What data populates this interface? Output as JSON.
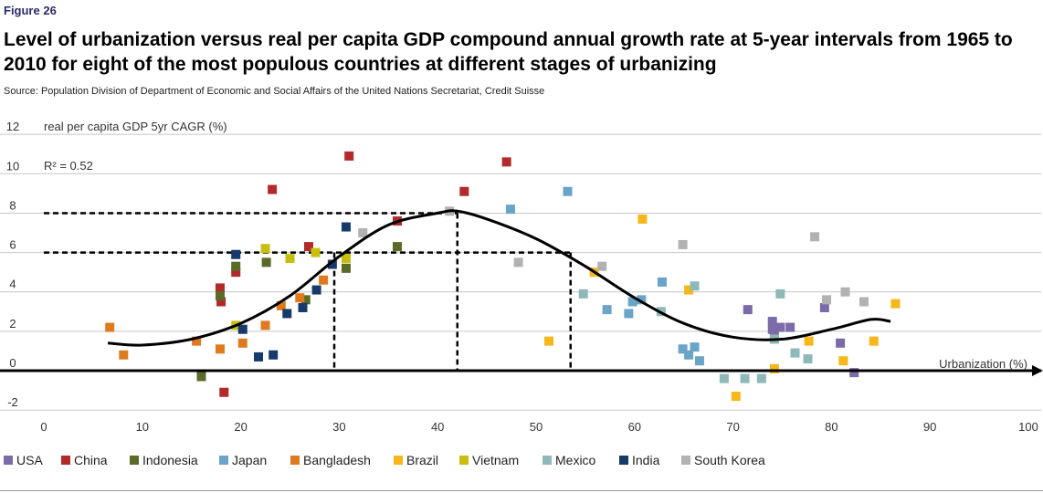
{
  "figure_label": "Figure 26",
  "title": "Level of urbanization versus real per capita GDP compound annual growth rate at 5-year intervals from 1965 to 2010 for eight of the most populous countries at different stages of urbanizing",
  "source": "Source: Population Division of Department of Economic and Social Affairs of the United Nations Secretariat, Credit Suisse",
  "chart_data": {
    "type": "scatter",
    "ylabel": "real per capita GDP 5yr CAGR (%)",
    "xlabel": "Urbanization (%)",
    "annotation": "R² = 0.52",
    "xlim": [
      0,
      100
    ],
    "ylim": [
      -2,
      12
    ],
    "xticks": [
      "0",
      "10",
      "20",
      "30",
      "40",
      "50",
      "60",
      "70",
      "80",
      "90",
      "100"
    ],
    "yticks": [
      "-2",
      "0",
      "2",
      "4",
      "6",
      "8",
      "10",
      "12"
    ],
    "colors": {
      "USA": "#7b6ba8",
      "China": "#b22a2a",
      "Indonesia": "#5a6a28",
      "Japan": "#6aa4c8",
      "Bangladesh": "#e07a20",
      "Brazil": "#f7b71a",
      "Vietnam": "#c8be10",
      "Mexico": "#8fb8b8",
      "India": "#163a6a",
      "South Korea": "#b2b2b2"
    },
    "series": [
      {
        "name": "USA",
        "points": [
          [
            71.5,
            3.1
          ],
          [
            74.0,
            2.5
          ],
          [
            74.0,
            2.1
          ],
          [
            74.2,
            1.8
          ],
          [
            74.8,
            2.2
          ],
          [
            75.8,
            2.2
          ],
          [
            79.3,
            3.2
          ],
          [
            80.9,
            1.4
          ],
          [
            82.3,
            -0.1
          ]
        ]
      },
      {
        "name": "China",
        "points": [
          [
            17.9,
            4.2
          ],
          [
            18.0,
            3.5
          ],
          [
            19.5,
            5.0
          ],
          [
            23.2,
            9.2
          ],
          [
            26.9,
            6.3
          ],
          [
            31.0,
            10.9
          ],
          [
            35.9,
            7.6
          ],
          [
            42.7,
            9.1
          ],
          [
            47.0,
            10.6
          ],
          [
            18.3,
            -1.1
          ]
        ]
      },
      {
        "name": "Indonesia",
        "points": [
          [
            16.0,
            -0.3
          ],
          [
            17.9,
            3.8
          ],
          [
            19.5,
            5.3
          ],
          [
            22.6,
            5.5
          ],
          [
            26.6,
            3.6
          ],
          [
            30.7,
            5.2
          ],
          [
            35.9,
            6.3
          ]
        ]
      },
      {
        "name": "Japan",
        "points": [
          [
            47.4,
            8.2
          ],
          [
            53.2,
            9.1
          ],
          [
            57.2,
            3.1
          ],
          [
            59.4,
            2.9
          ],
          [
            59.8,
            3.5
          ],
          [
            60.7,
            3.6
          ],
          [
            62.8,
            4.5
          ],
          [
            64.9,
            1.1
          ],
          [
            65.5,
            0.8
          ],
          [
            66.1,
            1.2
          ],
          [
            66.6,
            0.5
          ]
        ]
      },
      {
        "name": "Bangladesh",
        "points": [
          [
            6.7,
            2.2
          ],
          [
            8.1,
            0.8
          ],
          [
            15.5,
            1.5
          ],
          [
            17.9,
            1.1
          ],
          [
            20.2,
            1.4
          ],
          [
            22.5,
            2.3
          ],
          [
            24.1,
            3.3
          ],
          [
            26.0,
            3.7
          ],
          [
            28.4,
            4.6
          ]
        ]
      },
      {
        "name": "Brazil",
        "points": [
          [
            51.3,
            1.5
          ],
          [
            55.9,
            5.0
          ],
          [
            60.8,
            7.7
          ],
          [
            65.5,
            4.1
          ],
          [
            70.3,
            -1.3
          ],
          [
            74.2,
            0.1
          ],
          [
            77.7,
            1.5
          ],
          [
            81.2,
            0.5
          ],
          [
            84.3,
            1.5
          ],
          [
            86.5,
            3.4
          ]
        ]
      },
      {
        "name": "Vietnam",
        "points": [
          [
            19.5,
            2.3
          ],
          [
            22.5,
            6.2
          ],
          [
            25.0,
            5.7
          ],
          [
            27.6,
            6.0
          ],
          [
            30.7,
            5.7
          ]
        ]
      },
      {
        "name": "Mexico",
        "points": [
          [
            54.8,
            3.9
          ],
          [
            62.7,
            3.0
          ],
          [
            66.1,
            4.3
          ],
          [
            69.1,
            -0.4
          ],
          [
            71.2,
            -0.4
          ],
          [
            72.9,
            -0.4
          ],
          [
            74.2,
            1.6
          ],
          [
            74.8,
            3.9
          ],
          [
            76.3,
            0.9
          ],
          [
            77.6,
            0.6
          ]
        ]
      },
      {
        "name": "India",
        "points": [
          [
            19.5,
            5.9
          ],
          [
            20.2,
            2.1
          ],
          [
            21.8,
            0.7
          ],
          [
            23.3,
            0.8
          ],
          [
            24.7,
            2.9
          ],
          [
            26.3,
            3.2
          ],
          [
            27.7,
            4.1
          ],
          [
            29.3,
            5.4
          ],
          [
            30.7,
            7.3
          ]
        ]
      },
      {
        "name": "South Korea",
        "points": [
          [
            32.4,
            7.0
          ],
          [
            41.2,
            8.1
          ],
          [
            48.2,
            5.5
          ],
          [
            56.7,
            5.3
          ],
          [
            64.9,
            6.4
          ],
          [
            78.3,
            6.8
          ],
          [
            79.5,
            3.6
          ],
          [
            81.4,
            4.0
          ],
          [
            83.3,
            3.5
          ]
        ]
      }
    ],
    "fit_curve": [
      [
        6.5,
        1.4
      ],
      [
        10,
        1.3
      ],
      [
        15,
        1.6
      ],
      [
        20,
        2.4
      ],
      [
        25,
        3.8
      ],
      [
        30,
        5.8
      ],
      [
        35,
        7.4
      ],
      [
        40,
        8.0
      ],
      [
        42,
        8.1
      ],
      [
        45,
        7.7
      ],
      [
        50,
        6.7
      ],
      [
        55,
        5.3
      ],
      [
        60,
        3.7
      ],
      [
        65,
        2.4
      ],
      [
        70,
        1.7
      ],
      [
        75,
        1.6
      ],
      [
        80,
        2.1
      ],
      [
        84,
        2.6
      ],
      [
        86,
        2.5
      ]
    ],
    "reference_lines": [
      {
        "y": 8,
        "x": 42
      },
      {
        "y": 6,
        "x_left": 29.5,
        "x_right": 53.5
      }
    ],
    "legend_order": [
      "USA",
      "China",
      "Indonesia",
      "Japan",
      "Bangladesh",
      "Brazil",
      "Vietnam",
      "Mexico",
      "India",
      "South Korea"
    ]
  }
}
